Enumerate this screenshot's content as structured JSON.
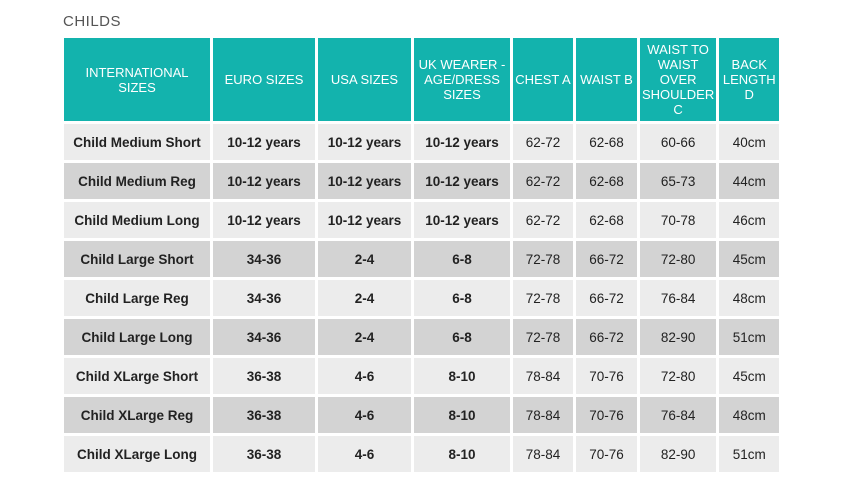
{
  "title": "CHILDS",
  "headers": [
    "INTERNATIONAL SIZES",
    "EURO SIZES",
    "USA SIZES",
    "UK WEARER - AGE/DRESS SIZES",
    "CHEST A",
    "WAIST B",
    "WAIST TO WAIST OVER SHOULDER C",
    "BACK LENGTH D"
  ],
  "rows": [
    [
      "Child Medium Short",
      "10-12 years",
      "10-12 years",
      "10-12 years",
      "62-72",
      "62-68",
      "60-66",
      "40cm"
    ],
    [
      "Child Medium Reg",
      "10-12 years",
      "10-12 years",
      "10-12 years",
      "62-72",
      "62-68",
      "65-73",
      "44cm"
    ],
    [
      "Child Medium Long",
      "10-12 years",
      "10-12 years",
      "10-12 years",
      "62-72",
      "62-68",
      "70-78",
      "46cm"
    ],
    [
      "Child Large Short",
      "34-36",
      "2-4",
      "6-8",
      "72-78",
      "66-72",
      "72-80",
      "45cm"
    ],
    [
      "Child Large Reg",
      "34-36",
      "2-4",
      "6-8",
      "72-78",
      "66-72",
      "76-84",
      "48cm"
    ],
    [
      "Child Large Long",
      "34-36",
      "2-4",
      "6-8",
      "72-78",
      "66-72",
      "82-90",
      "51cm"
    ],
    [
      "Child XLarge Short",
      "36-38",
      "4-6",
      "8-10",
      "78-84",
      "70-76",
      "72-80",
      "45cm"
    ],
    [
      "Child XLarge Reg",
      "36-38",
      "4-6",
      "8-10",
      "78-84",
      "70-76",
      "76-84",
      "48cm"
    ],
    [
      "Child XLarge Long",
      "36-38",
      "4-6",
      "8-10",
      "78-84",
      "70-76",
      "82-90",
      "51cm"
    ]
  ],
  "colors": {
    "header_bg": "#13b3ad",
    "header_text": "#ffffff",
    "row_light": "#ececec",
    "row_dark": "#d3d3d3"
  }
}
